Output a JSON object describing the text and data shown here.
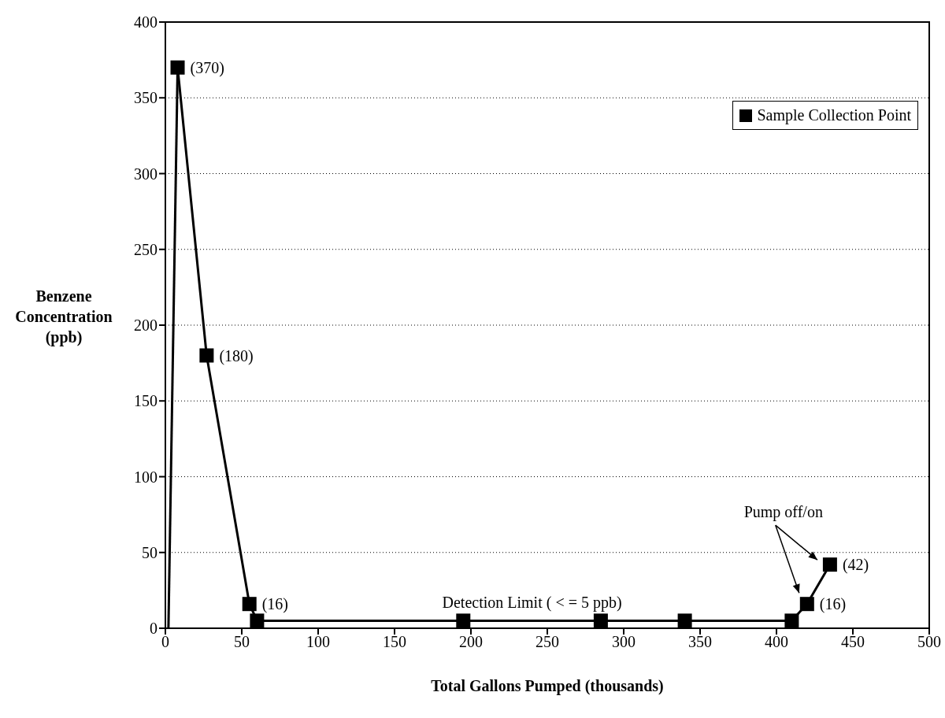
{
  "chart_data": {
    "type": "line",
    "xlabel": "Total Gallons Pumped (thousands)",
    "ylabel": "Benzene Concentration (ppb)",
    "xlim": [
      0,
      500
    ],
    "xticks": [
      0,
      50,
      100,
      150,
      200,
      250,
      300,
      350,
      400,
      450,
      500
    ],
    "ylim": [
      0,
      400
    ],
    "yticks": [
      0,
      50,
      100,
      150,
      200,
      250,
      300,
      350,
      400
    ],
    "grid": "y",
    "legend": "top right",
    "line_style": "solid",
    "series": [
      {
        "type": "line",
        "color": "#000000",
        "x": [
          2,
          8
        ],
        "values": [
          0,
          370
        ]
      },
      {
        "name": "Sample Collection Point",
        "marker": "square",
        "color": "#000000",
        "x": [
          8,
          27,
          55,
          60,
          195,
          285,
          340,
          410,
          420,
          435
        ],
        "values": [
          370,
          180,
          16,
          5,
          5,
          5,
          5,
          5,
          16,
          42
        ],
        "value_labels": [
          "(370)",
          "(180)",
          "(16)",
          null,
          null,
          null,
          null,
          null,
          "(16)",
          "(42)"
        ]
      }
    ],
    "annotations": [
      {
        "text": "Detection Limit ( < = 5 ppb)",
        "x": 240,
        "y": 5
      },
      "Pump off/on"
    ]
  }
}
